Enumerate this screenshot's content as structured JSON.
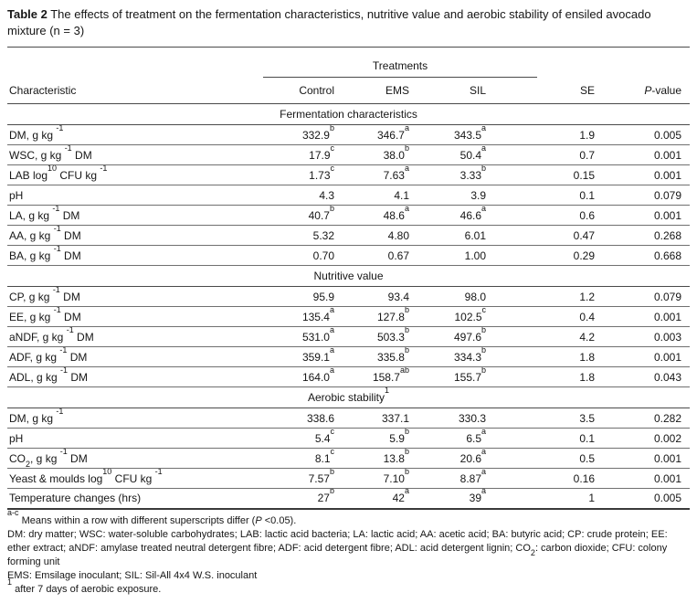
{
  "title": {
    "label": "Table 2",
    "text": " The effects of treatment on the fermentation characteristics, nutritive value and aerobic stability of ensiled avocado mixture (n = 3)"
  },
  "table": {
    "treatments_label": "Treatments",
    "columns": [
      "Characteristic",
      "Control",
      "EMS",
      "SIL",
      "SE",
      "*P*-value"
    ],
    "sections": [
      {
        "heading": "Fermentation characteristics",
        "rows": [
          {
            "characteristic": "DM, g kg ^-1^",
            "control": "332.9^b^",
            "ems": "346.7^a^",
            "sil": "343.5^a^",
            "se": "1.9",
            "p": "0.005"
          },
          {
            "characteristic": "WSC, g kg ^-1^ DM",
            "control": "17.9^c^",
            "ems": "38.0^b^",
            "sil": "50.4^a^",
            "se": "0.7",
            "p": "0.001"
          },
          {
            "characteristic": "LAB log^10^ CFU kg ^-1^",
            "control": "1.73^c^",
            "ems": "7.63^a^",
            "sil": "3.33^b^",
            "se": "0.15",
            "p": "0.001"
          },
          {
            "characteristic": "pH",
            "control": "4.3",
            "ems": "4.1",
            "sil": "3.9",
            "se": "0.1",
            "p": "0.079"
          },
          {
            "characteristic": "LA, g kg ^-1^ DM",
            "control": "40.7^b^",
            "ems": "48.6^a^",
            "sil": "46.6^a^",
            "se": "0.6",
            "p": "0.001"
          },
          {
            "characteristic": "AA, g kg ^-1^ DM",
            "control": "5.32",
            "ems": "4.80",
            "sil": "6.01",
            "se": "0.47",
            "p": "0.268"
          },
          {
            "characteristic": "BA, g kg ^-1^ DM",
            "control": "0.70",
            "ems": "0.67",
            "sil": "1.00",
            "se": "0.29",
            "p": "0.668"
          }
        ]
      },
      {
        "heading": "Nutritive value",
        "rows": [
          {
            "characteristic": "CP, g kg ^-1^ DM",
            "control": "95.9",
            "ems": "93.4",
            "sil": "98.0",
            "se": "1.2",
            "p": "0.079"
          },
          {
            "characteristic": "EE, g kg ^-1^ DM",
            "control": "135.4^a^",
            "ems": "127.8^b^",
            "sil": "102.5^c^",
            "se": "0.4",
            "p": "0.001"
          },
          {
            "characteristic": "aNDF, g kg ^-1^ DM",
            "control": "531.0^a^",
            "ems": "503.3^b^",
            "sil": "497.6^b^",
            "se": "4.2",
            "p": "0.003"
          },
          {
            "characteristic": "ADF, g kg ^-1^ DM",
            "control": "359.1^a^",
            "ems": "335.8^b^",
            "sil": "334.3^b^",
            "se": "1.8",
            "p": "0.001"
          },
          {
            "characteristic": "ADL, g kg ^-1^ DM",
            "control": "164.0^a^",
            "ems": "158.7^ab^",
            "sil": "155.7^b^",
            "se": "1.8",
            "p": "0.043"
          }
        ]
      },
      {
        "heading": "Aerobic stability^1^",
        "rows": [
          {
            "characteristic": "DM, g kg ^-1^",
            "control": "338.6",
            "ems": "337.1",
            "sil": "330.3",
            "se": "3.5",
            "p": "0.282"
          },
          {
            "characteristic": "pH",
            "control": "5.4^c^",
            "ems": "5.9^b^",
            "sil": "6.5^a^",
            "se": "0.1",
            "p": "0.002"
          },
          {
            "characteristic": "CO~2~, g kg ^-1^ DM",
            "control": "8.1^c^",
            "ems": "13.8^b^",
            "sil": "20.6^a^",
            "se": "0.5",
            "p": "0.001"
          },
          {
            "characteristic": "Yeast & moulds log^10^ CFU kg ^-1^",
            "control": "7.57^b^",
            "ems": "7.10^b^",
            "sil": "8.87^a^",
            "se": "0.16",
            "p": "0.001"
          },
          {
            "characteristic": "Temperature changes (hrs)",
            "control": "27^b^",
            "ems": "42^a^",
            "sil": "39^a^",
            "se": "1",
            "p": "0.005"
          }
        ]
      }
    ]
  },
  "footnotes": [
    "^a-c^ Means within a row with different superscripts differ (*P* <0.05).",
    "DM: dry matter; WSC: water-soluble carbohydrates; LAB: lactic acid bacteria; LA: lactic acid; AA: acetic acid; BA: butyric acid; CP: crude protein; EE: ether extract; aNDF: amylase treated neutral detergent fibre; ADF: acid detergent fibre; ADL: acid detergent lignin; CO~2~: carbon dioxide; CFU: colony forming unit",
    "EMS: Emsilage inoculant; SIL: Sil-All 4x4 W.S. inoculant",
    "^1^ after 7 days of aerobic exposure."
  ]
}
